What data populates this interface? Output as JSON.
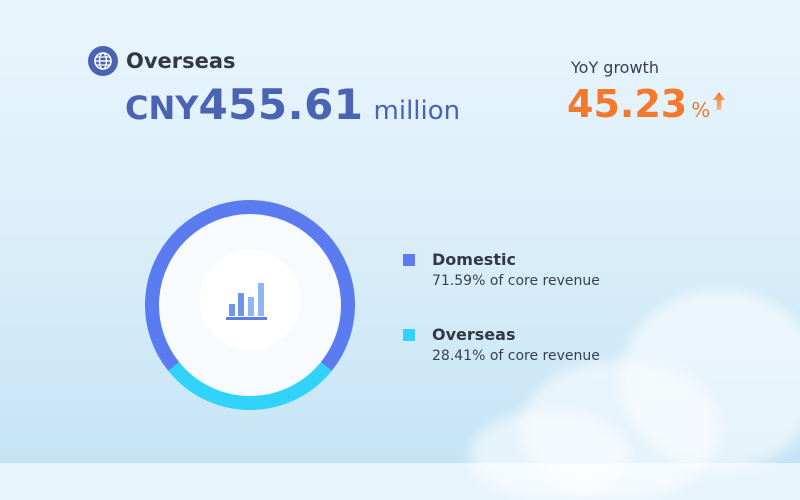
{
  "header": {
    "region": "Overseas",
    "icon": "globe-icon"
  },
  "revenue": {
    "currency": "CNY",
    "value": "455.61",
    "unit": "million"
  },
  "growth": {
    "label": "YoY growth",
    "value": "45.23",
    "unit": "%",
    "direction": "up",
    "icon": "arrow-up-icon"
  },
  "colors": {
    "primary": "#4a64b3",
    "domestic": "#5b7cf1",
    "overseas": "#31d3fa",
    "accent": "#f37a2c"
  },
  "chart_data": {
    "type": "pie",
    "categories": [
      "Domestic",
      "Overseas"
    ],
    "values": [
      71.59,
      28.41
    ],
    "colors": [
      "#5b7cf1",
      "#31d3fa"
    ],
    "center_icon": "bar-chart-icon",
    "legend_placement": "right",
    "legend": [
      {
        "name": "Domestic",
        "desc": "71.59% of core revenue",
        "color": "#5b7cf1"
      },
      {
        "name": "Overseas",
        "desc": "28.41% of core revenue",
        "color": "#31d3fa"
      }
    ]
  }
}
